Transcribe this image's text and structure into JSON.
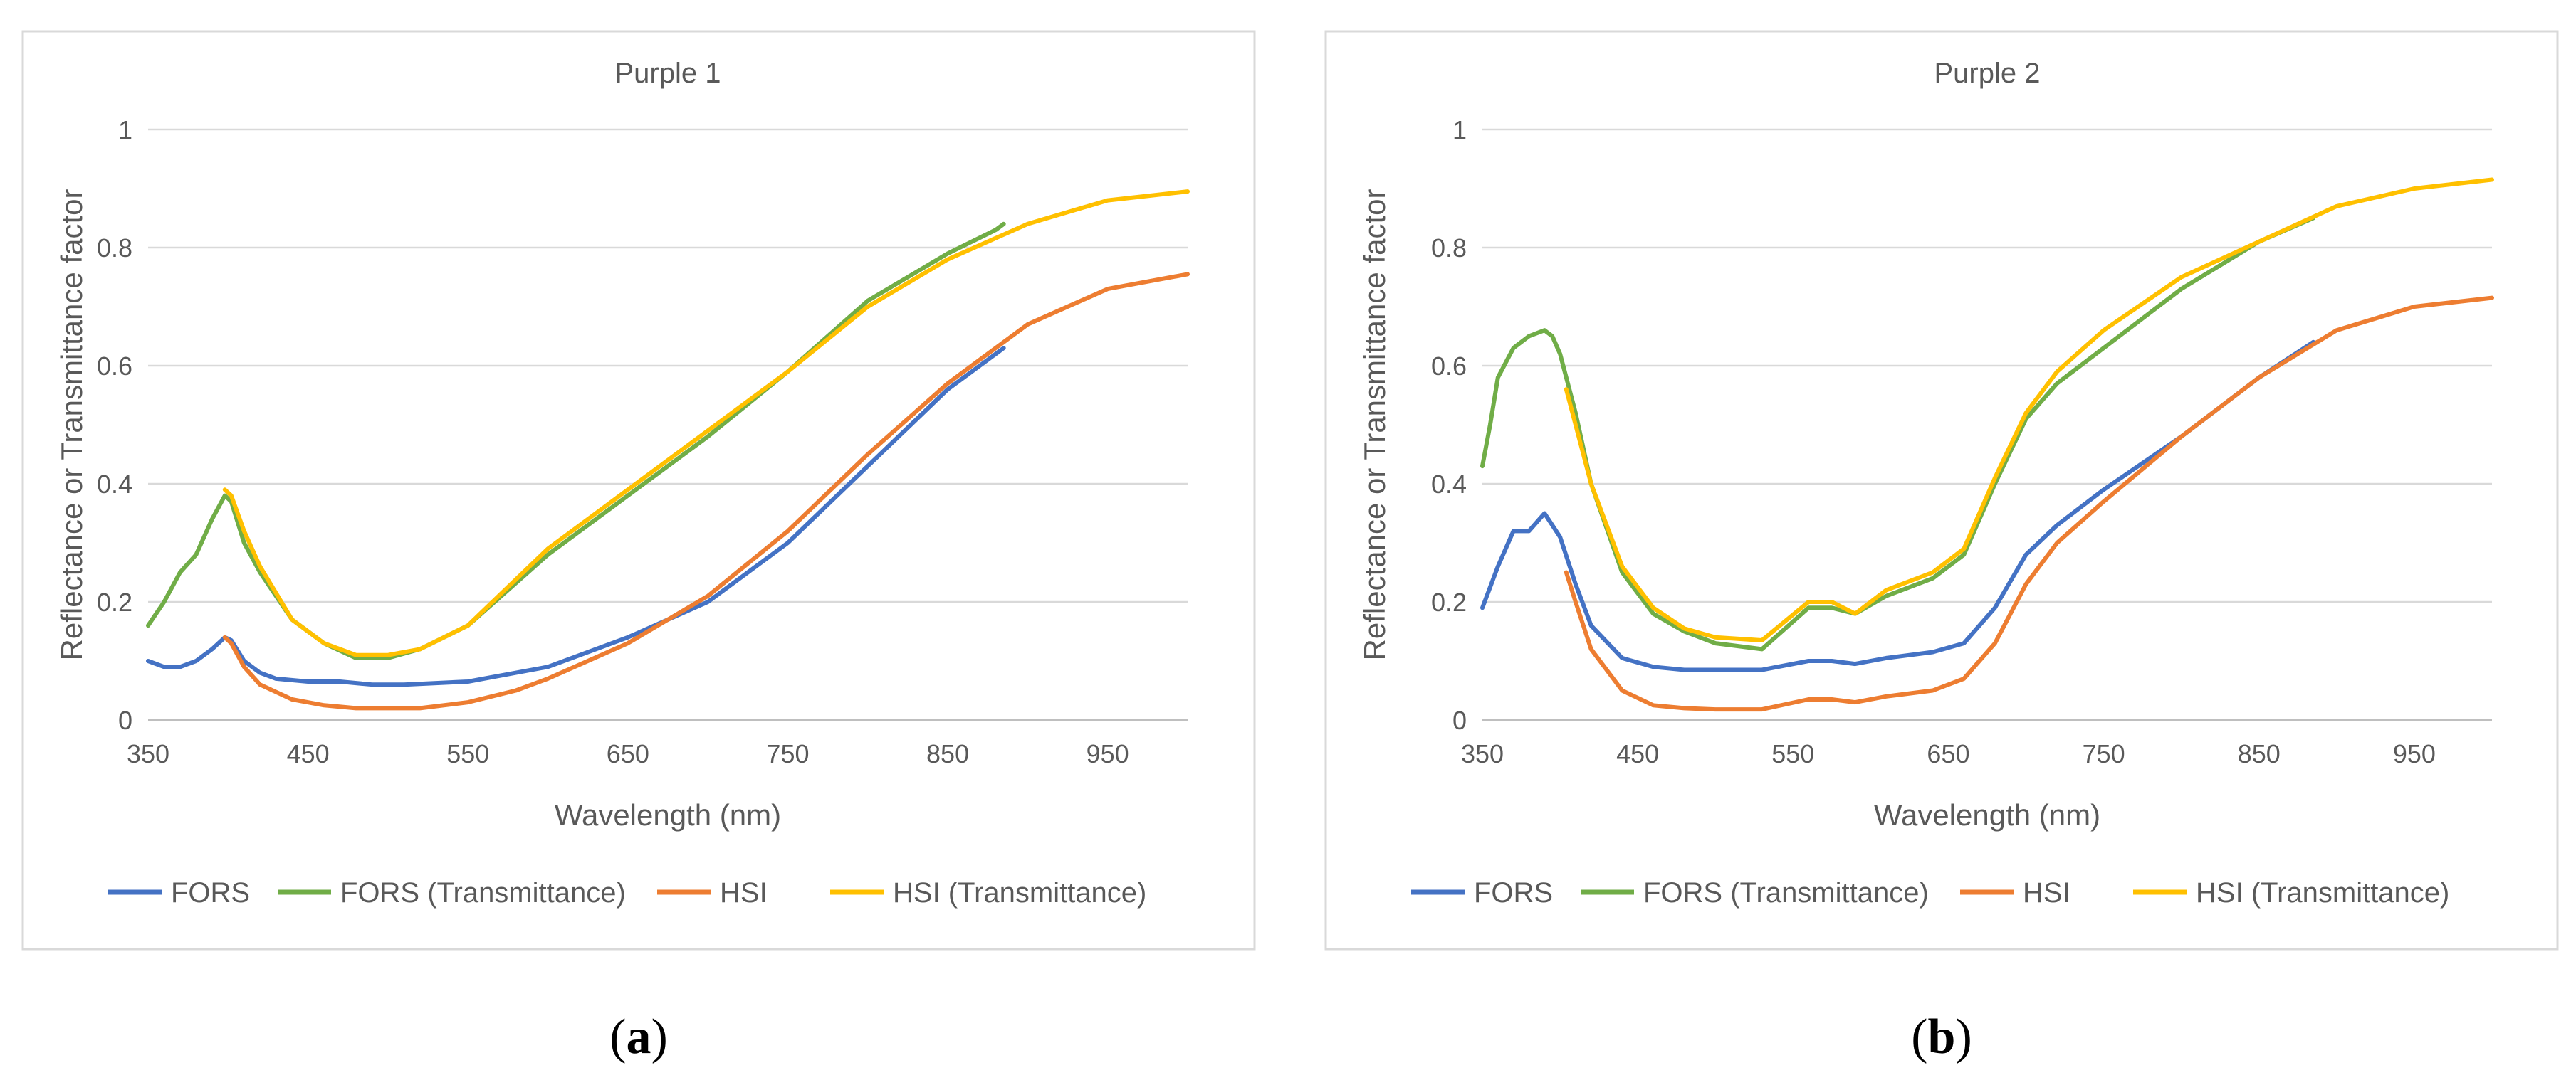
{
  "figure": {
    "panels": [
      {
        "caption_open": "(",
        "caption_letter": "a",
        "caption_close": ")"
      },
      {
        "caption_open": "(",
        "caption_letter": "b",
        "caption_close": ")"
      }
    ]
  },
  "chart_data": [
    {
      "type": "line",
      "title": "Purple 1",
      "xlabel": "Wavelength (nm)",
      "ylabel": "Reflectance or Transmittance factor",
      "xlim": [
        350,
        1000
      ],
      "ylim": [
        0,
        1
      ],
      "xticks": [
        350,
        450,
        550,
        650,
        750,
        850,
        950
      ],
      "yticks": [
        0,
        0.2,
        0.4,
        0.6,
        0.8,
        1
      ],
      "ytick_labels": [
        "0",
        "0.2",
        "0.4",
        "0.6",
        "0.8",
        "1"
      ],
      "legend_position": "bottom",
      "series": [
        {
          "name": "FORS",
          "color": "#4472c4",
          "x": [
            350,
            360,
            370,
            380,
            390,
            398,
            402,
            410,
            420,
            430,
            450,
            470,
            490,
            510,
            550,
            600,
            650,
            700,
            750,
            800,
            850,
            880,
            885
          ],
          "y": [
            0.1,
            0.09,
            0.09,
            0.1,
            0.12,
            0.14,
            0.135,
            0.1,
            0.08,
            0.07,
            0.065,
            0.065,
            0.06,
            0.06,
            0.065,
            0.09,
            0.14,
            0.2,
            0.3,
            0.43,
            0.56,
            0.62,
            0.63
          ]
        },
        {
          "name": "FORS (Transmittance)",
          "color": "#70ad47",
          "x": [
            350,
            360,
            370,
            380,
            390,
            398,
            402,
            410,
            420,
            440,
            460,
            480,
            500,
            520,
            550,
            600,
            650,
            700,
            750,
            800,
            850,
            880,
            885
          ],
          "y": [
            0.16,
            0.2,
            0.25,
            0.28,
            0.34,
            0.38,
            0.37,
            0.3,
            0.25,
            0.17,
            0.13,
            0.105,
            0.105,
            0.12,
            0.16,
            0.28,
            0.38,
            0.48,
            0.59,
            0.71,
            0.79,
            0.83,
            0.84
          ]
        },
        {
          "name": "HSI",
          "color": "#ed7d31",
          "x": [
            398,
            402,
            410,
            420,
            440,
            460,
            480,
            500,
            520,
            550,
            580,
            600,
            650,
            700,
            750,
            800,
            850,
            900,
            950,
            1000
          ],
          "y": [
            0.14,
            0.13,
            0.09,
            0.06,
            0.035,
            0.025,
            0.02,
            0.02,
            0.02,
            0.03,
            0.05,
            0.07,
            0.13,
            0.21,
            0.32,
            0.45,
            0.57,
            0.67,
            0.73,
            0.755
          ]
        },
        {
          "name": "HSI (Transmittance)",
          "color": "#ffc000",
          "x": [
            398,
            402,
            410,
            420,
            440,
            460,
            480,
            500,
            520,
            550,
            600,
            650,
            700,
            750,
            800,
            850,
            900,
            950,
            1000
          ],
          "y": [
            0.39,
            0.38,
            0.32,
            0.26,
            0.17,
            0.13,
            0.11,
            0.11,
            0.12,
            0.16,
            0.29,
            0.39,
            0.49,
            0.59,
            0.7,
            0.78,
            0.84,
            0.88,
            0.895
          ]
        }
      ]
    },
    {
      "type": "line",
      "title": "Purple 2",
      "xlabel": "Wavelength (nm)",
      "ylabel": "Reflectance or Transmittance factor",
      "xlim": [
        350,
        1000
      ],
      "ylim": [
        0,
        1
      ],
      "xticks": [
        350,
        450,
        550,
        650,
        750,
        850,
        950
      ],
      "yticks": [
        0,
        0.2,
        0.4,
        0.6,
        0.8,
        1
      ],
      "ytick_labels": [
        "0",
        "0.2",
        "0.4",
        "0.6",
        "0.8",
        "1"
      ],
      "legend_position": "bottom",
      "series": [
        {
          "name": "FORS",
          "color": "#4472c4",
          "x": [
            350,
            360,
            370,
            380,
            390,
            400,
            410,
            420,
            440,
            460,
            480,
            500,
            530,
            560,
            575,
            590,
            610,
            640,
            660,
            680,
            700,
            720,
            750,
            800,
            850,
            885
          ],
          "y": [
            0.19,
            0.26,
            0.32,
            0.32,
            0.35,
            0.31,
            0.23,
            0.16,
            0.105,
            0.09,
            0.085,
            0.085,
            0.085,
            0.1,
            0.1,
            0.095,
            0.105,
            0.115,
            0.13,
            0.19,
            0.28,
            0.33,
            0.39,
            0.48,
            0.58,
            0.64
          ]
        },
        {
          "name": "FORS (Transmittance)",
          "color": "#70ad47",
          "x": [
            350,
            355,
            360,
            370,
            380,
            390,
            395,
            400,
            410,
            420,
            440,
            460,
            480,
            500,
            530,
            560,
            575,
            590,
            610,
            640,
            660,
            680,
            700,
            720,
            750,
            800,
            850,
            885
          ],
          "y": [
            0.43,
            0.5,
            0.58,
            0.63,
            0.65,
            0.66,
            0.65,
            0.62,
            0.52,
            0.4,
            0.25,
            0.18,
            0.15,
            0.13,
            0.12,
            0.19,
            0.19,
            0.18,
            0.21,
            0.24,
            0.28,
            0.4,
            0.51,
            0.57,
            0.63,
            0.73,
            0.81,
            0.85
          ]
        },
        {
          "name": "HSI",
          "color": "#ed7d31",
          "x": [
            404,
            410,
            420,
            440,
            460,
            480,
            500,
            530,
            560,
            575,
            590,
            610,
            640,
            660,
            680,
            700,
            720,
            750,
            800,
            850,
            900,
            950,
            1000
          ],
          "y": [
            0.25,
            0.2,
            0.12,
            0.05,
            0.025,
            0.02,
            0.018,
            0.018,
            0.035,
            0.035,
            0.03,
            0.04,
            0.05,
            0.07,
            0.13,
            0.23,
            0.3,
            0.37,
            0.48,
            0.58,
            0.66,
            0.7,
            0.715
          ]
        },
        {
          "name": "HSI (Transmittance)",
          "color": "#ffc000",
          "x": [
            404,
            410,
            420,
            440,
            460,
            480,
            500,
            530,
            560,
            575,
            590,
            610,
            640,
            660,
            680,
            700,
            720,
            750,
            800,
            850,
            900,
            950,
            1000
          ],
          "y": [
            0.56,
            0.5,
            0.4,
            0.26,
            0.19,
            0.155,
            0.14,
            0.135,
            0.2,
            0.2,
            0.18,
            0.22,
            0.25,
            0.29,
            0.41,
            0.52,
            0.59,
            0.66,
            0.75,
            0.81,
            0.87,
            0.9,
            0.915
          ]
        }
      ]
    }
  ]
}
